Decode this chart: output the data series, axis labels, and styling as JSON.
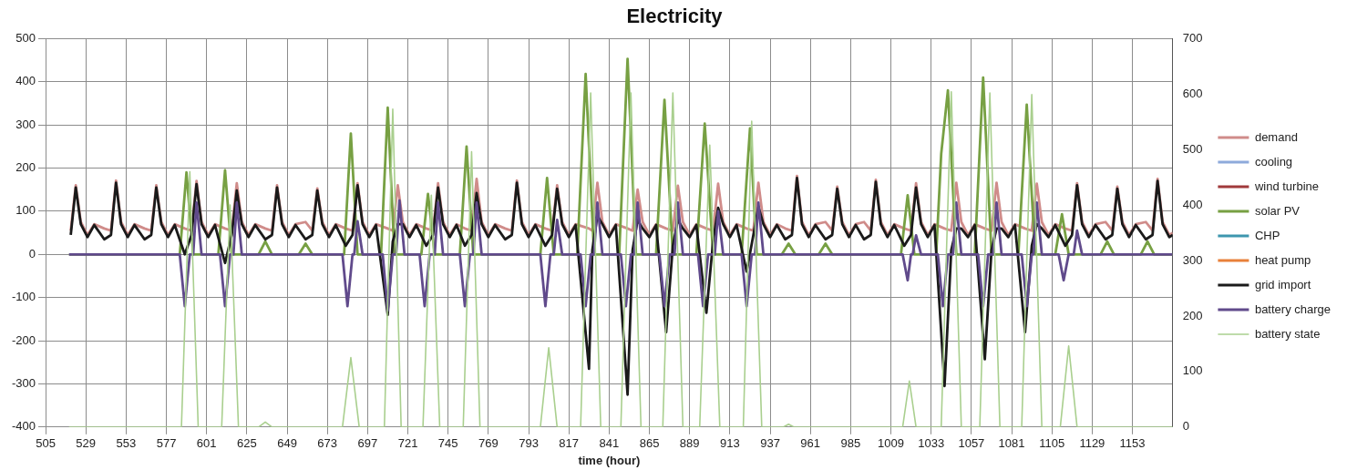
{
  "chart_data": {
    "type": "line",
    "title": "Electricity",
    "xlabel": "time (hour)",
    "xlim": [
      505,
      1177
    ],
    "xticks": [
      505,
      529,
      553,
      577,
      601,
      625,
      649,
      673,
      697,
      721,
      745,
      769,
      793,
      817,
      841,
      865,
      889,
      913,
      937,
      961,
      985,
      1009,
      1033,
      1057,
      1081,
      1105,
      1129,
      1153
    ],
    "ylim": [
      -400,
      500
    ],
    "yticks": [
      -400,
      -300,
      -200,
      -100,
      0,
      100,
      200,
      300,
      400,
      500
    ],
    "y2lim": [
      0,
      700
    ],
    "y2ticks": [
      0,
      100,
      200,
      300,
      400,
      500,
      600,
      700
    ],
    "grid": true,
    "legend": "right",
    "marker": "none",
    "series": [
      {
        "name": "demand",
        "color": "#d08c8a",
        "x": [
          520,
          523,
          526,
          530,
          534,
          540,
          544,
          547,
          550,
          554,
          558,
          564,
          568,
          571,
          574,
          578,
          582,
          588,
          592,
          595,
          598,
          602,
          606,
          612,
          616,
          619,
          622,
          626,
          630,
          636,
          640,
          643,
          646,
          650,
          654,
          660,
          664,
          667,
          670,
          674,
          678,
          684,
          688,
          691,
          694,
          698,
          702,
          709,
          712,
          715,
          718,
          722,
          726,
          732,
          736,
          739,
          742,
          746,
          750,
          755,
          759,
          762,
          765,
          769,
          773,
          779,
          783,
          786,
          789,
          793,
          797,
          803,
          807,
          810,
          813,
          817,
          821,
          829,
          831,
          834,
          837,
          841,
          845,
          852,
          855,
          858,
          861,
          865,
          869,
          875,
          879,
          882,
          885,
          889,
          893,
          899,
          903,
          906,
          909,
          913,
          917,
          923,
          927,
          930,
          933,
          937,
          941,
          946,
          950,
          953,
          956,
          960,
          964,
          970,
          974,
          977,
          980,
          984,
          988,
          993,
          997,
          1000,
          1003,
          1007,
          1011,
          1017,
          1021,
          1024,
          1027,
          1031,
          1035,
          1041,
          1045,
          1048,
          1051,
          1055,
          1059,
          1065,
          1069,
          1072,
          1075,
          1079,
          1083,
          1089,
          1093,
          1096,
          1099,
          1103,
          1107,
          1113,
          1117,
          1120,
          1123,
          1127,
          1131,
          1137,
          1141,
          1144,
          1147,
          1151,
          1155,
          1161,
          1165,
          1168,
          1171,
          1175,
          1177
        ],
        "values": [
          55,
          160,
          75,
          45,
          70,
          60,
          55,
          171,
          75,
          45,
          70,
          60,
          55,
          160,
          75,
          45,
          70,
          60,
          55,
          170,
          75,
          45,
          70,
          60,
          55,
          165,
          75,
          45,
          70,
          60,
          55,
          160,
          75,
          45,
          70,
          75,
          55,
          153,
          75,
          45,
          70,
          60,
          55,
          165,
          75,
          45,
          70,
          60,
          55,
          160,
          75,
          45,
          70,
          60,
          55,
          165,
          75,
          45,
          70,
          60,
          55,
          175,
          75,
          45,
          70,
          60,
          55,
          171,
          75,
          45,
          70,
          60,
          55,
          160,
          75,
          45,
          70,
          60,
          55,
          166,
          75,
          45,
          70,
          60,
          55,
          150,
          75,
          45,
          70,
          60,
          55,
          159,
          75,
          45,
          70,
          60,
          55,
          164,
          75,
          45,
          70,
          60,
          55,
          166,
          75,
          45,
          70,
          60,
          55,
          182,
          75,
          45,
          70,
          75,
          55,
          157,
          75,
          45,
          70,
          75,
          55,
          173,
          75,
          45,
          70,
          60,
          55,
          165,
          75,
          45,
          70,
          60,
          55,
          166,
          75,
          45,
          70,
          60,
          55,
          166,
          75,
          45,
          70,
          60,
          55,
          164,
          75,
          45,
          70,
          60,
          55,
          165,
          75,
          45,
          70,
          75,
          55,
          157,
          75,
          45,
          70,
          75,
          55,
          175,
          75,
          45,
          50
        ]
      },
      {
        "name": "cooling",
        "color": "#8eaadb"
      },
      {
        "name": "wind turbine",
        "color": "#a0393b"
      },
      {
        "name": "solar PV",
        "color": "#77a043",
        "x": [
          519,
          585,
          589,
          593,
          608,
          612,
          616,
          632,
          636,
          640,
          656,
          660,
          664,
          683,
          687,
          691,
          705,
          709,
          713,
          729,
          733,
          737,
          752,
          756,
          760,
          800,
          804,
          808,
          822,
          827,
          832,
          847,
          852,
          857,
          869,
          874,
          879,
          893,
          898,
          903,
          920,
          925,
          929,
          944,
          948,
          952,
          966,
          970,
          974,
          1015,
          1019,
          1023,
          1036,
          1039,
          1043,
          1048,
          1059,
          1064,
          1069,
          1085,
          1090,
          1095,
          1107,
          1111,
          1115,
          1134,
          1138,
          1142,
          1158,
          1162,
          1166,
          1177
        ],
        "values": [
          0,
          0,
          190,
          0,
          0,
          195,
          0,
          0,
          30,
          0,
          0,
          25,
          0,
          0,
          280,
          0,
          0,
          340,
          0,
          0,
          140,
          0,
          0,
          250,
          0,
          0,
          177,
          0,
          0,
          418,
          0,
          0,
          453,
          0,
          0,
          358,
          0,
          0,
          303,
          0,
          0,
          292,
          0,
          0,
          25,
          0,
          0,
          25,
          0,
          0,
          137,
          0,
          0,
          233,
          380,
          0,
          0,
          410,
          0,
          0,
          347,
          0,
          0,
          93,
          0,
          0,
          30,
          0,
          0,
          30,
          0,
          0
        ]
      },
      {
        "name": "CHP",
        "color": "#3d96ae"
      },
      {
        "name": "heat pump",
        "color": "#e8803a"
      },
      {
        "name": "grid import",
        "color": "#1a1a1a",
        "x": [
          520,
          523,
          526,
          530,
          534,
          540,
          544,
          547,
          550,
          554,
          558,
          564,
          568,
          571,
          574,
          578,
          582,
          588,
          592,
          595,
          598,
          602,
          606,
          612,
          616,
          619,
          622,
          626,
          630,
          636,
          640,
          643,
          646,
          650,
          654,
          660,
          664,
          667,
          670,
          674,
          678,
          684,
          688,
          691,
          694,
          698,
          702,
          709,
          712,
          715,
          718,
          722,
          726,
          732,
          736,
          739,
          742,
          746,
          750,
          755,
          759,
          762,
          765,
          769,
          773,
          779,
          783,
          786,
          789,
          793,
          797,
          803,
          807,
          810,
          813,
          817,
          821,
          829,
          831,
          834,
          837,
          841,
          845,
          852,
          855,
          858,
          861,
          865,
          869,
          875,
          879,
          882,
          885,
          889,
          893,
          899,
          903,
          906,
          909,
          913,
          917,
          923,
          927,
          930,
          933,
          937,
          941,
          946,
          950,
          953,
          956,
          960,
          964,
          970,
          974,
          977,
          980,
          984,
          988,
          993,
          997,
          1000,
          1003,
          1007,
          1011,
          1017,
          1021,
          1024,
          1027,
          1031,
          1035,
          1041,
          1045,
          1048,
          1051,
          1055,
          1059,
          1065,
          1069,
          1072,
          1075,
          1079,
          1083,
          1089,
          1093,
          1096,
          1099,
          1103,
          1107,
          1113,
          1117,
          1120,
          1123,
          1127,
          1131,
          1137,
          1141,
          1144,
          1147,
          1151,
          1155,
          1161,
          1165,
          1168,
          1171,
          1175,
          1177
        ],
        "values": [
          45,
          155,
          70,
          40,
          68,
          35,
          45,
          166,
          70,
          40,
          68,
          35,
          45,
          155,
          70,
          40,
          68,
          0,
          45,
          163,
          70,
          40,
          68,
          -20,
          45,
          148,
          70,
          40,
          68,
          35,
          45,
          155,
          70,
          40,
          68,
          35,
          45,
          148,
          70,
          40,
          68,
          20,
          45,
          160,
          70,
          40,
          68,
          -140,
          30,
          70,
          70,
          40,
          68,
          20,
          45,
          155,
          70,
          40,
          68,
          20,
          45,
          142,
          70,
          40,
          68,
          35,
          45,
          166,
          70,
          40,
          68,
          20,
          45,
          152,
          70,
          40,
          68,
          -265,
          10,
          90,
          70,
          40,
          68,
          -325,
          10,
          80,
          60,
          40,
          68,
          -180,
          20,
          80,
          60,
          40,
          68,
          -135,
          30,
          108,
          70,
          40,
          68,
          -40,
          45,
          110,
          70,
          40,
          68,
          35,
          45,
          177,
          70,
          40,
          68,
          35,
          45,
          152,
          70,
          40,
          68,
          35,
          45,
          168,
          70,
          40,
          68,
          20,
          45,
          155,
          70,
          40,
          68,
          -305,
          10,
          60,
          60,
          40,
          68,
          -243,
          10,
          60,
          60,
          40,
          68,
          -180,
          20,
          70,
          60,
          40,
          68,
          20,
          45,
          160,
          70,
          40,
          68,
          35,
          45,
          152,
          70,
          40,
          68,
          35,
          45,
          170,
          70,
          40,
          45
        ]
      },
      {
        "name": "battery charge",
        "color": "#604a8b",
        "x": [
          519,
          585,
          588,
          591,
          593,
          595,
          598,
          609,
          612,
          615,
          617,
          619,
          622,
          682,
          685,
          688,
          689,
          691,
          694,
          706,
          709,
          712,
          714,
          716,
          719,
          728,
          731,
          734,
          737,
          739,
          742,
          752,
          755,
          758,
          760,
          762,
          765,
          800,
          803,
          806,
          808,
          810,
          813,
          824,
          827,
          830,
          832,
          834,
          837,
          848,
          851,
          854,
          856,
          858,
          861,
          871,
          874,
          877,
          880,
          882,
          885,
          894,
          897,
          900,
          904,
          906,
          909,
          920,
          923,
          926,
          928,
          930,
          933,
          1016,
          1019,
          1021,
          1022,
          1024,
          1027,
          1037,
          1040,
          1043,
          1046,
          1048,
          1051,
          1061,
          1064,
          1067,
          1070,
          1072,
          1075,
          1087,
          1090,
          1093,
          1094,
          1096,
          1099,
          1109,
          1112,
          1115,
          1118,
          1120,
          1123,
          1177
        ],
        "values": [
          0,
          0,
          -120,
          0,
          0,
          120,
          0,
          0,
          -120,
          0,
          0,
          120,
          0,
          0,
          -120,
          0,
          0,
          77,
          0,
          0,
          -130,
          0,
          0,
          125,
          0,
          0,
          -120,
          0,
          0,
          120,
          0,
          0,
          -120,
          0,
          0,
          120,
          0,
          0,
          -120,
          0,
          0,
          80,
          0,
          0,
          -120,
          0,
          0,
          120,
          0,
          0,
          -120,
          0,
          0,
          120,
          0,
          0,
          -120,
          0,
          0,
          120,
          0,
          0,
          -120,
          0,
          0,
          100,
          0,
          0,
          -120,
          0,
          0,
          120,
          0,
          0,
          -60,
          0,
          0,
          44,
          0,
          0,
          -120,
          0,
          0,
          120,
          0,
          0,
          -120,
          0,
          0,
          120,
          0,
          0,
          -120,
          0,
          0,
          120,
          0,
          0,
          -60,
          0,
          0,
          55,
          0,
          0
        ]
      },
      {
        "name": "battery state",
        "color": "#a9cf8e",
        "axis": "y2",
        "x": [
          519,
          586,
          591,
          596,
          610,
          615,
          620,
          632,
          636,
          640,
          682,
          687,
          692,
          707,
          712,
          717,
          730,
          735,
          740,
          754,
          759,
          764,
          800,
          805,
          810,
          824,
          830,
          836,
          848,
          854,
          860,
          873,
          879,
          885,
          895,
          901,
          907,
          921,
          926,
          932,
          945,
          948,
          951,
          1016,
          1020,
          1024,
          1039,
          1045,
          1051,
          1062,
          1068,
          1074,
          1087,
          1093,
          1099,
          1110,
          1115,
          1120,
          1177
        ],
        "values": [
          0,
          0,
          460,
          0,
          0,
          400,
          0,
          0,
          9,
          0,
          0,
          125,
          0,
          0,
          573,
          0,
          0,
          418,
          0,
          0,
          496,
          0,
          0,
          143,
          0,
          0,
          602,
          0,
          0,
          602,
          0,
          0,
          602,
          0,
          0,
          508,
          0,
          0,
          551,
          0,
          0,
          5,
          0,
          0,
          83,
          0,
          0,
          604,
          0,
          0,
          602,
          0,
          0,
          599,
          0,
          0,
          146,
          0,
          0
        ]
      }
    ]
  }
}
